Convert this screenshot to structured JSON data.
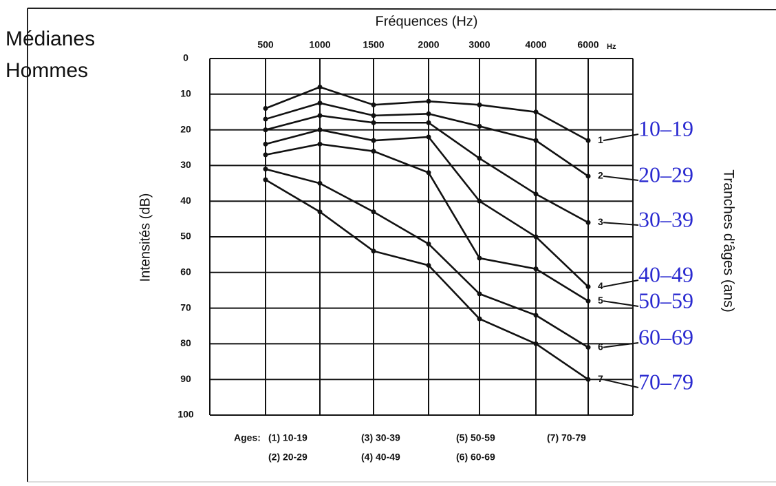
{
  "chart_data": {
    "type": "line",
    "title_lines": [
      "Médianes",
      "Hommes"
    ],
    "x_label": "Fréquences (Hz)",
    "x_unit": "Hz",
    "y_label": "Intensités (dB)",
    "y2_label": "Tranches d'âges (ans)",
    "categories": [
      "500",
      "1000",
      "1500",
      "2000",
      "3000",
      "4000",
      "6000"
    ],
    "ylim": [
      0,
      100
    ],
    "y_reversed": true,
    "yticks": [
      0,
      10,
      20,
      30,
      40,
      50,
      60,
      70,
      80,
      90,
      100
    ],
    "grid": true,
    "label_color": "#2a2ad0",
    "legend_prefix": "Ages:",
    "legend_items": [
      "(1) 10-19",
      "(2) 20-29",
      "(3) 30-39",
      "(4) 40-49",
      "(5) 50-59",
      "(6) 60-69",
      "(7) 70-79"
    ],
    "line_labels": [
      "1",
      "2",
      "3",
      "4",
      "5",
      "6",
      "7"
    ],
    "series": [
      {
        "name": "10–19",
        "color": "#111111",
        "values": [
          14,
          8,
          13,
          12,
          13,
          15,
          23
        ]
      },
      {
        "name": "20–29",
        "color": "#111111",
        "values": [
          17,
          12.5,
          16,
          15.5,
          19,
          23,
          33
        ]
      },
      {
        "name": "30–39",
        "color": "#111111",
        "values": [
          20,
          16,
          18,
          18,
          28,
          38,
          46
        ]
      },
      {
        "name": "40–49",
        "color": "#111111",
        "values": [
          24,
          20,
          23,
          22,
          40,
          50,
          64
        ]
      },
      {
        "name": "50–59",
        "color": "#111111",
        "values": [
          27,
          24,
          26,
          32,
          56,
          59,
          68
        ]
      },
      {
        "name": "60–69",
        "color": "#111111",
        "values": [
          31,
          35,
          43,
          52,
          66,
          72,
          81
        ]
      },
      {
        "name": "70–79",
        "color": "#111111",
        "values": [
          34,
          43,
          54,
          58,
          73,
          80,
          90
        ]
      }
    ]
  }
}
